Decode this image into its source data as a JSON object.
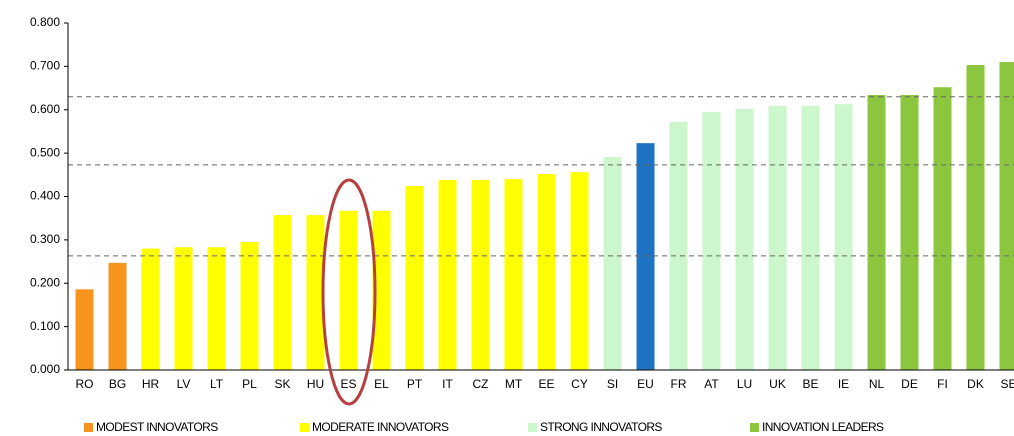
{
  "chart_data": {
    "type": "bar",
    "categories": [
      "RO",
      "BG",
      "HR",
      "LV",
      "LT",
      "PL",
      "SK",
      "HU",
      "ES",
      "EL",
      "PT",
      "IT",
      "CZ",
      "MT",
      "EE",
      "CY",
      "SI",
      "EU",
      "FR",
      "AT",
      "LU",
      "UK",
      "BE",
      "IE",
      "NL",
      "DE",
      "FI",
      "DK",
      "SE"
    ],
    "values": [
      0.186,
      0.247,
      0.28,
      0.283,
      0.283,
      0.295,
      0.357,
      0.357,
      0.367,
      0.367,
      0.424,
      0.438,
      0.438,
      0.44,
      0.452,
      0.456,
      0.491,
      0.523,
      0.572,
      0.595,
      0.602,
      0.609,
      0.609,
      0.613,
      0.634,
      0.634,
      0.652,
      0.703,
      0.71
    ],
    "colors": [
      "#f7941d",
      "#f7941d",
      "#ffff00",
      "#ffff00",
      "#ffff00",
      "#ffff00",
      "#ffff00",
      "#ffff00",
      "#ffff00",
      "#ffff00",
      "#ffff00",
      "#ffff00",
      "#ffff00",
      "#ffff00",
      "#ffff00",
      "#ffff00",
      "#ccf7cc",
      "#1f73c4",
      "#ccf7cc",
      "#ccf7cc",
      "#ccf7cc",
      "#ccf7cc",
      "#ccf7cc",
      "#ccf7cc",
      "#8cc63f",
      "#8cc63f",
      "#8cc63f",
      "#8cc63f",
      "#8cc63f"
    ],
    "ylim": [
      0,
      0.8
    ],
    "yticks": [
      {
        "value": 0,
        "label": "0.000"
      },
      {
        "value": 0.1,
        "label": "0.100"
      },
      {
        "value": 0.2,
        "label": "0.200"
      },
      {
        "value": 0.3,
        "label": "0.300"
      },
      {
        "value": 0.4,
        "label": "0.400"
      },
      {
        "value": 0.5,
        "label": "0.500"
      },
      {
        "value": 0.6,
        "label": "0.600"
      },
      {
        "value": 0.7,
        "label": "0.700"
      },
      {
        "value": 0.8,
        "label": "0.800"
      }
    ],
    "reference_lines": [
      0.263,
      0.473,
      0.63
    ],
    "legend": [
      {
        "name": "MODEST INNOVATORS",
        "color": "#f7941d"
      },
      {
        "name": "MODERATE INNOVATORS",
        "color": "#ffff00"
      },
      {
        "name": "STRONG INNOVATORS",
        "color": "#ccf7cc"
      },
      {
        "name": "INNOVATION LEADERS",
        "color": "#8cc63f"
      }
    ]
  }
}
